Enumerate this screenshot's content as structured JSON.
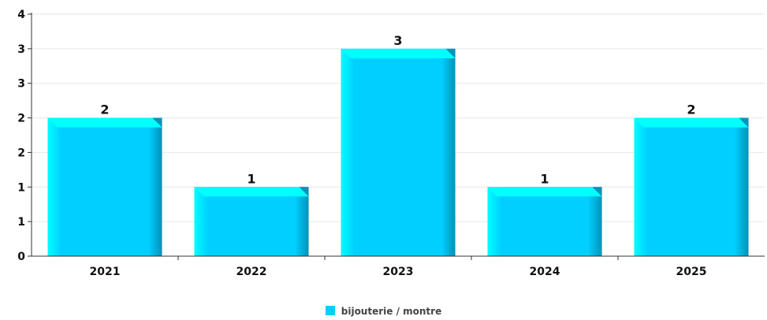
{
  "chart_data": {
    "type": "bar",
    "categories": [
      "2021",
      "2022",
      "2023",
      "2024",
      "2025"
    ],
    "series": [
      {
        "name": "bijouterie / montre",
        "values": [
          2,
          1,
          3,
          1,
          2
        ]
      }
    ],
    "y_tick_labels": [
      "0",
      "1",
      "1",
      "2",
      "2",
      "3",
      "3",
      "4"
    ],
    "data_labels": [
      "2",
      "1",
      "3",
      "1",
      "2"
    ],
    "ylim": [
      0,
      3.5
    ],
    "grid": true,
    "legend_position": "bottom-center",
    "colors": {
      "bar": "#00cfff",
      "bar_top": "#00ffff",
      "bar_side": "#0093b8",
      "grid": "#e6e6e6",
      "axis": "#333333"
    }
  }
}
